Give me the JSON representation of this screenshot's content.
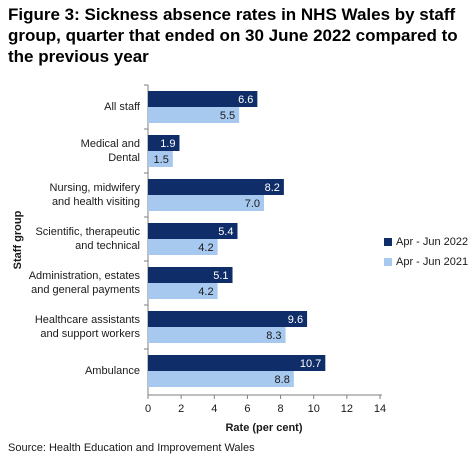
{
  "chart_data": {
    "type": "bar",
    "orientation": "horizontal",
    "title": "Figure 3: Sickness absence rates in NHS Wales by staff group, quarter that ended on 30 June 2022 compared to the previous year",
    "categories": [
      [
        "All staff"
      ],
      [
        "Medical and",
        "Dental"
      ],
      [
        "Nursing, midwifery",
        "and health visiting"
      ],
      [
        "Scientific, therapeutic",
        "and technical"
      ],
      [
        "Administration, estates",
        "and general payments"
      ],
      [
        "Healthcare assistants",
        "and support workers"
      ],
      [
        "Ambulance"
      ]
    ],
    "series": [
      {
        "name": "Apr - Jun 2022",
        "color": "#0f2d69",
        "label_color": "#ffffff",
        "values": [
          6.6,
          1.9,
          8.2,
          5.4,
          5.1,
          9.6,
          10.7
        ],
        "value_labels": [
          "6.6",
          "1.9",
          "8.2",
          "5.4",
          "5.1",
          "9.6",
          "10.7"
        ]
      },
      {
        "name": "Apr - Jun 2021",
        "color": "#a7c8ef",
        "label_color": "#1a1a1a",
        "values": [
          5.5,
          1.5,
          7.0,
          4.2,
          4.2,
          8.3,
          8.8
        ],
        "value_labels": [
          "5.5",
          "1.5",
          "7.0",
          "4.2",
          "4.2",
          "8.3",
          "8.8"
        ]
      }
    ],
    "xlabel": "Rate (per cent)",
    "ylabel": "Staff group",
    "xlim": [
      0,
      14
    ],
    "xticks": [
      0,
      2,
      4,
      6,
      8,
      10,
      12,
      14
    ],
    "grid": false,
    "legend": "right",
    "source": "Source: Health Education and Improvement Wales"
  }
}
